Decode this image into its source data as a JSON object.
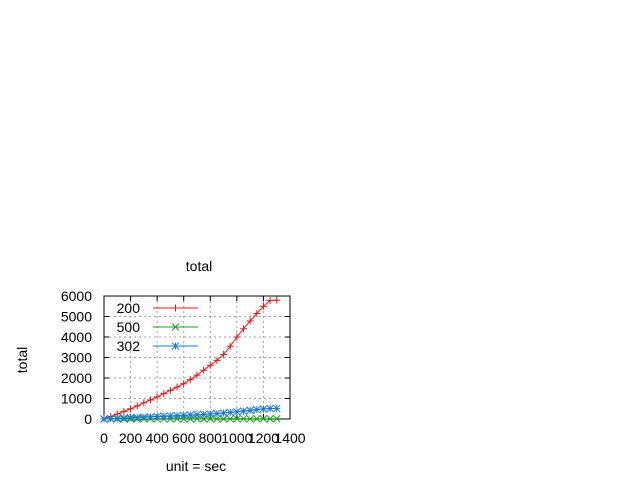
{
  "chart_data": {
    "type": "line",
    "title": "total",
    "xlabel": "unit = sec",
    "ylabel": "total",
    "xlim": [
      0,
      1400
    ],
    "ylim": [
      0,
      6000
    ],
    "x_ticks": [
      "0",
      "200",
      "400",
      "600",
      "800",
      "1000",
      "1200",
      "1400"
    ],
    "y_ticks": [
      "0",
      "1000",
      "2000",
      "3000",
      "4000",
      "5000",
      "6000"
    ],
    "grid": true,
    "legend_position": "top-left",
    "series": [
      {
        "name": "200",
        "color": "#e41a1c",
        "marker": "plus",
        "x": [
          0,
          50,
          100,
          150,
          200,
          250,
          300,
          350,
          400,
          450,
          500,
          550,
          600,
          650,
          700,
          750,
          800,
          850,
          900,
          950,
          1000,
          1050,
          1100,
          1150,
          1200,
          1250,
          1300
        ],
        "y": [
          0,
          120,
          240,
          370,
          500,
          640,
          790,
          930,
          1080,
          1240,
          1400,
          1560,
          1720,
          1920,
          2140,
          2380,
          2620,
          2860,
          3150,
          3550,
          4000,
          4400,
          4780,
          5150,
          5500,
          5780,
          5800
        ]
      },
      {
        "name": "500",
        "color": "#19a319",
        "marker": "cross",
        "x": [
          0,
          50,
          100,
          150,
          200,
          250,
          300,
          350,
          400,
          450,
          500,
          550,
          600,
          650,
          700,
          750,
          800,
          850,
          900,
          950,
          1000,
          1050,
          1100,
          1150,
          1200,
          1250,
          1300
        ],
        "y": [
          0,
          0,
          1,
          1,
          2,
          2,
          3,
          3,
          3,
          4,
          4,
          5,
          5,
          6,
          6,
          7,
          7,
          8,
          8,
          9,
          9,
          10,
          10,
          11,
          11,
          12,
          12
        ]
      },
      {
        "name": "302",
        "color": "#1f78d1",
        "marker": "star",
        "x": [
          0,
          50,
          100,
          150,
          200,
          250,
          300,
          350,
          400,
          450,
          500,
          550,
          600,
          650,
          700,
          750,
          800,
          850,
          900,
          950,
          1000,
          1050,
          1100,
          1150,
          1200,
          1250,
          1300
        ],
        "y": [
          0,
          15,
          30,
          45,
          60,
          75,
          90,
          105,
          120,
          135,
          150,
          165,
          180,
          195,
          210,
          225,
          245,
          265,
          290,
          320,
          350,
          385,
          420,
          460,
          490,
          510,
          510
        ]
      }
    ]
  }
}
